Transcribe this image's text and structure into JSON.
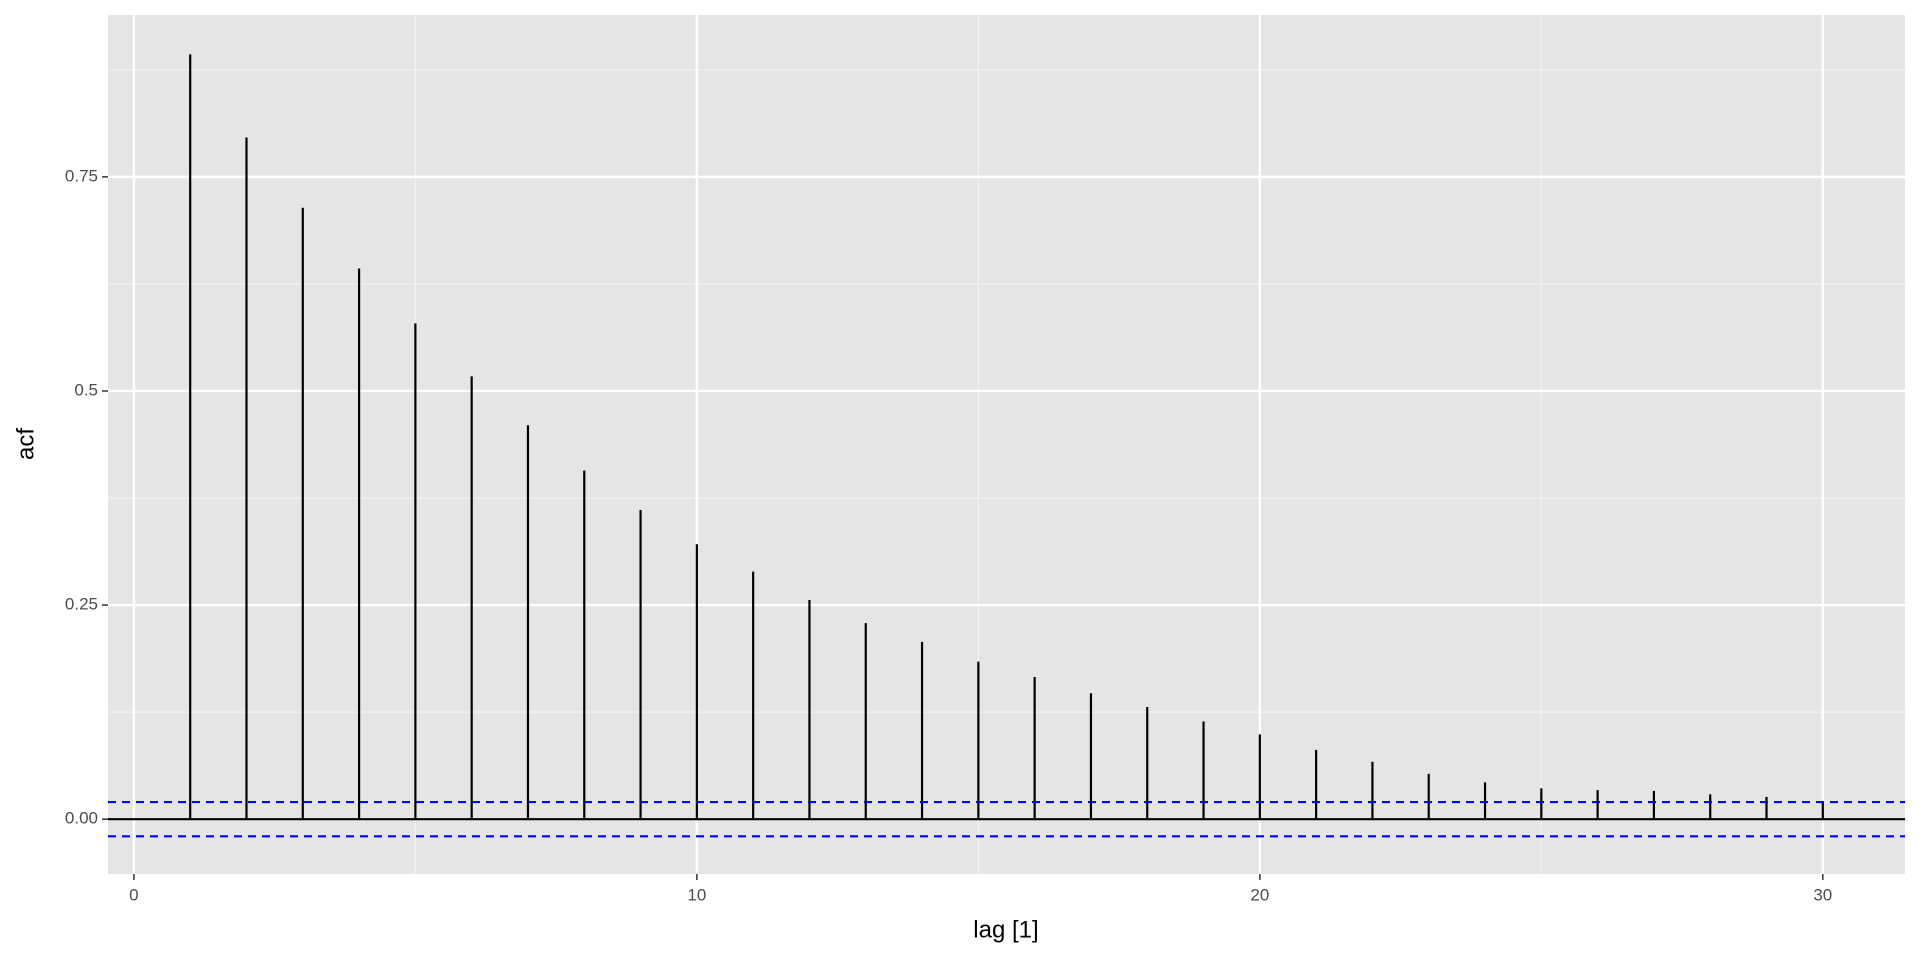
{
  "chart_data": {
    "type": "bar",
    "x_label": "lag [1]",
    "y_label": "acf",
    "x": [
      1,
      2,
      3,
      4,
      5,
      6,
      7,
      8,
      9,
      10,
      11,
      12,
      13,
      14,
      15,
      16,
      17,
      18,
      19,
      20,
      21,
      22,
      23,
      24,
      25,
      26,
      27,
      28,
      29,
      30
    ],
    "values": [
      0.893,
      0.796,
      0.714,
      0.643,
      0.579,
      0.517,
      0.46,
      0.407,
      0.361,
      0.321,
      0.289,
      0.256,
      0.229,
      0.207,
      0.184,
      0.166,
      0.147,
      0.131,
      0.114,
      0.099,
      0.081,
      0.067,
      0.053,
      0.043,
      0.036,
      0.034,
      0.033,
      0.029,
      0.026,
      0.02
    ],
    "color": "#000000",
    "confidence_bounds": [
      -0.02,
      0.02
    ],
    "confidence_color": "#0000ff",
    "xlim": [
      -0.46,
      31.46
    ],
    "xticks": [
      0,
      10,
      20,
      30
    ],
    "xminor": [
      5,
      15,
      25
    ],
    "ylim": [
      -0.064,
      0.939
    ],
    "yticks": [
      {
        "value": 0,
        "label": "0.00"
      },
      0.25,
      0.5,
      0.75
    ],
    "yminor": [
      0.125,
      0.375,
      0.625,
      0.875
    ],
    "grid": true
  }
}
